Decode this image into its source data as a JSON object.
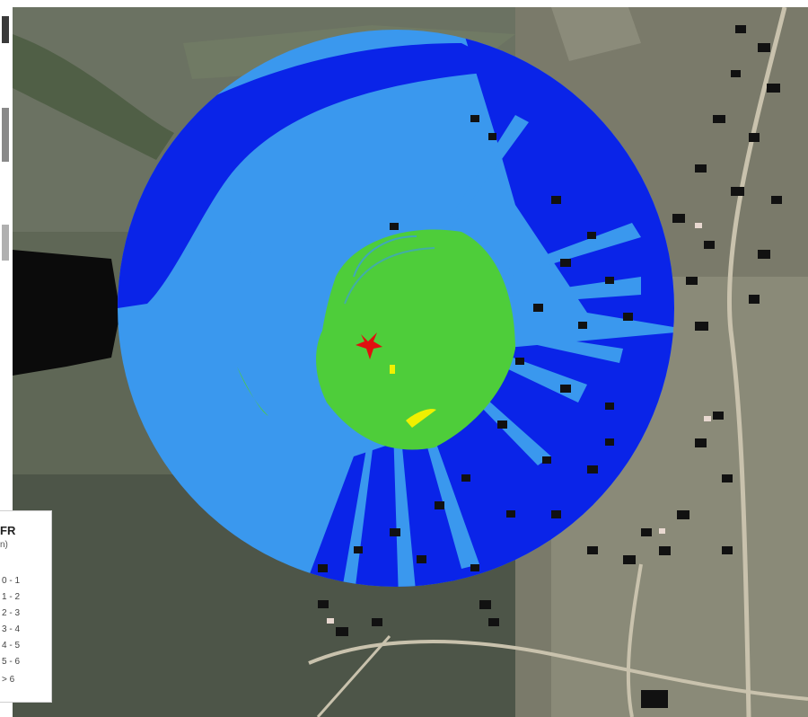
{
  "legend": {
    "title": "FR",
    "unit": "n)",
    "items": [
      {
        "label": "0 - 1"
      },
      {
        "label": "1 - 2"
      },
      {
        "label": "2 - 3"
      },
      {
        "label": "3 - 4"
      },
      {
        "label": "4 - 5"
      },
      {
        "label": "5 - 6"
      },
      {
        "label": "> 6"
      }
    ]
  },
  "colors": {
    "zone_dark_blue": "#0a24e8",
    "zone_light_blue": "#3a98ee",
    "zone_green": "#4ecd3a",
    "zone_yellow": "#f0f000",
    "antenna_marker": "#e01010",
    "building_fill": "#111111",
    "road": "#c9c2ad",
    "water": "#0b0b0b"
  },
  "map": {
    "basemap": "aerial-imagery",
    "overlay": "circular-coverage-zones",
    "marker_icon": "red-star-antenna-icon"
  }
}
